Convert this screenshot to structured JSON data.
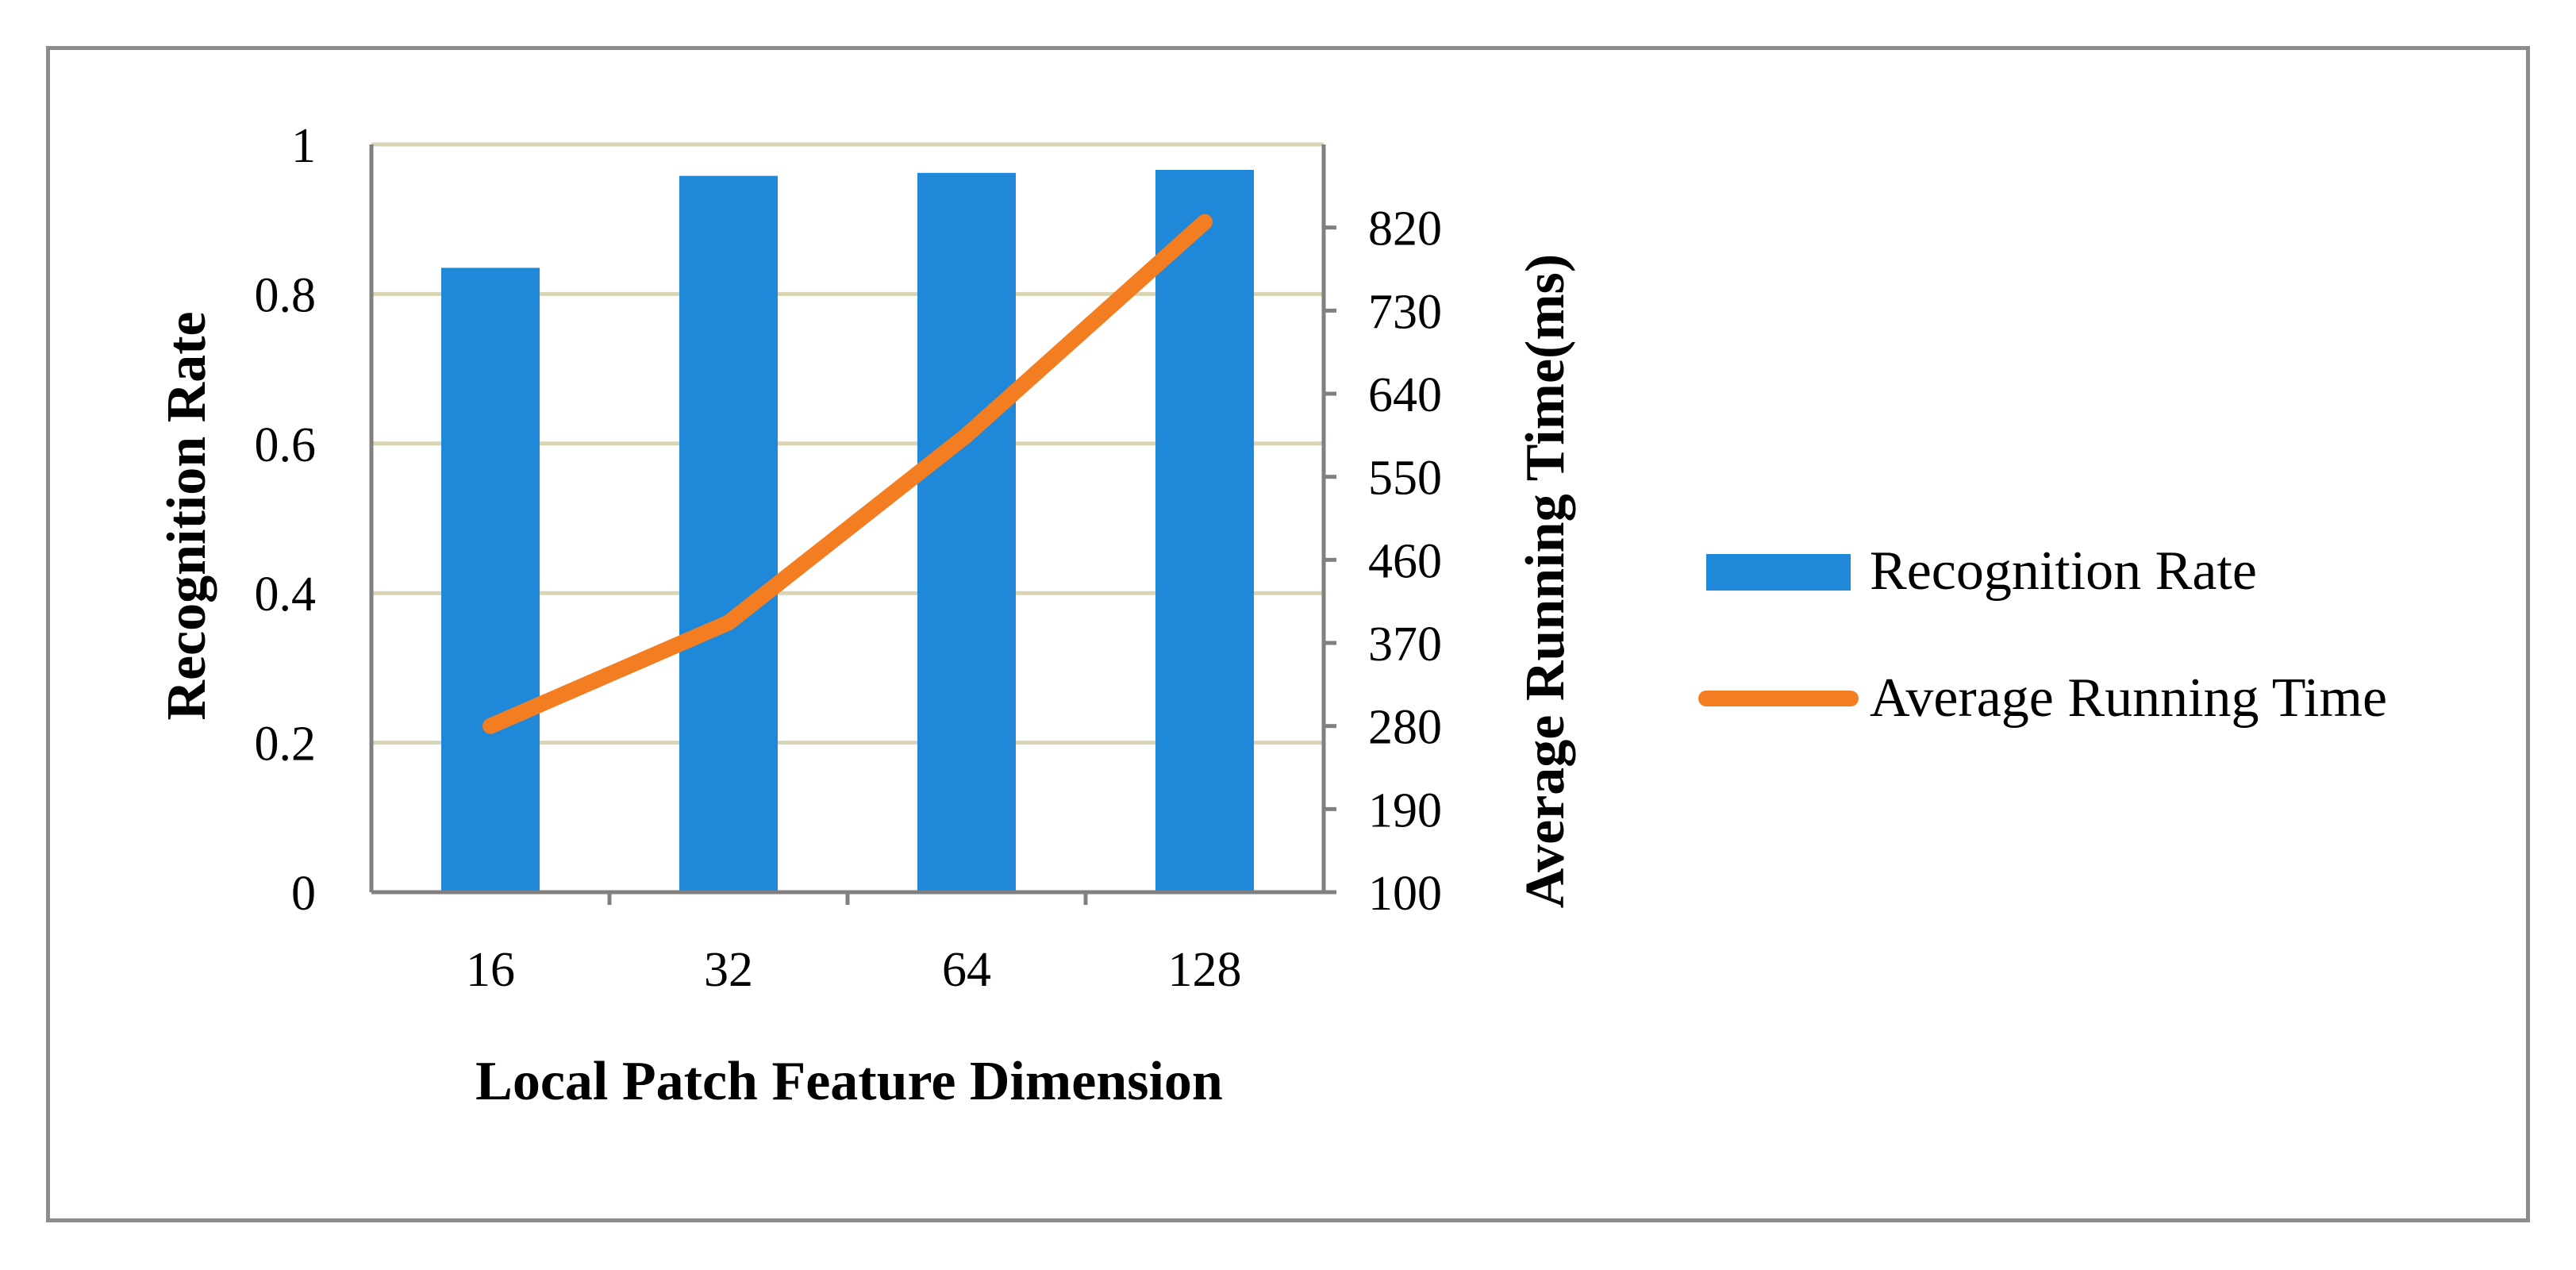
{
  "chart_data": {
    "type": "bar",
    "categories": [
      "16",
      "32",
      "64",
      "128"
    ],
    "xlabel": "Local Patch Feature Dimension",
    "series": [
      {
        "name": "Recognition Rate",
        "type": "bar",
        "axis": "left",
        "color": "#2088d8",
        "values": [
          0.835,
          0.958,
          0.962,
          0.966
        ]
      },
      {
        "name": "Average Running Time",
        "type": "line",
        "axis": "right",
        "color": "#f37e22",
        "values": [
          280,
          392,
          595,
          826
        ]
      }
    ],
    "y_left": {
      "label": "Recognition Rate",
      "ylim": [
        0,
        1
      ],
      "ticks": [
        "0",
        "0.2",
        "0.4",
        "0.6",
        "0.8",
        "1"
      ]
    },
    "y_right": {
      "label": "Average Running Time(ms)",
      "ylim": [
        100,
        910
      ],
      "ticks": [
        "100",
        "190",
        "280",
        "370",
        "460",
        "550",
        "640",
        "730",
        "820"
      ]
    },
    "grid": true,
    "legend_position": "right"
  }
}
